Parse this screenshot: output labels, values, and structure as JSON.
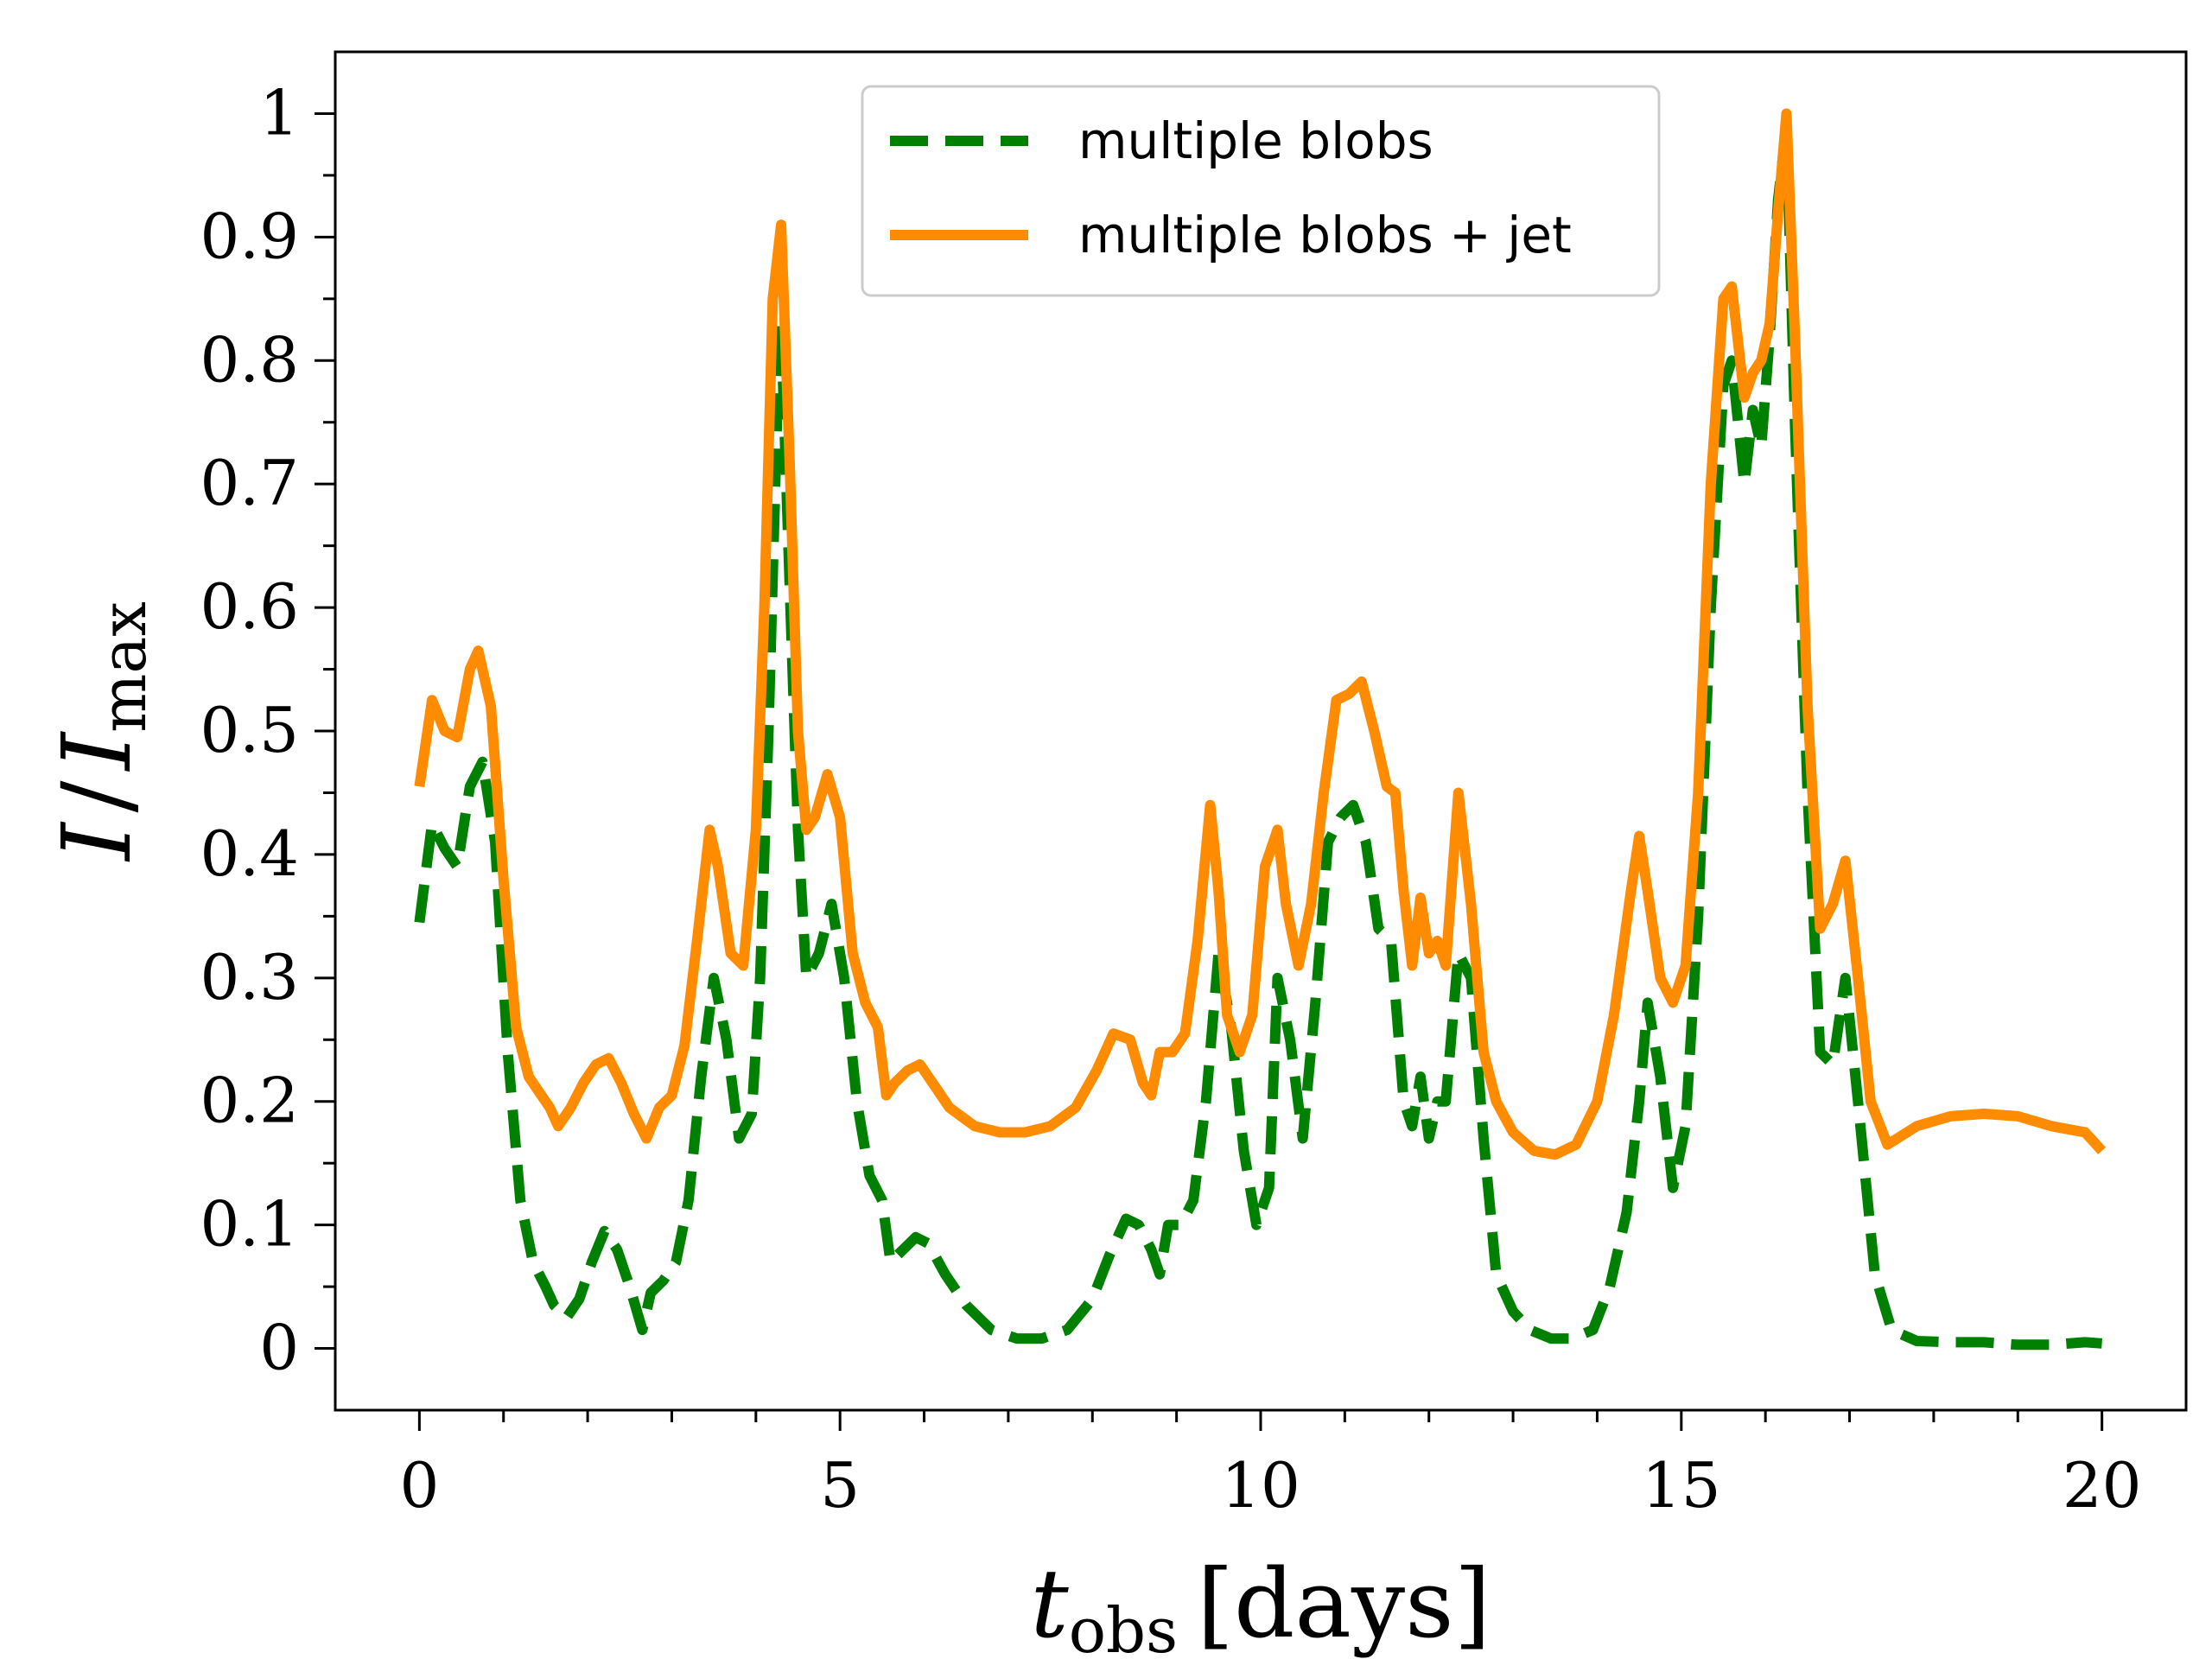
{
  "chart_data": {
    "type": "line",
    "title": "",
    "xlabel": {
      "var": "t",
      "sub": "obs",
      "unit": "[days]"
    },
    "ylabel": {
      "var": "I",
      "sep": "/",
      "var2": "I",
      "sub": "max"
    },
    "xlim": [
      -1,
      21
    ],
    "ylim": [
      -0.05,
      1.05
    ],
    "x_ticks": [
      0,
      5,
      10,
      15,
      20
    ],
    "x_tick_labels": [
      "0",
      "5",
      "10",
      "15",
      "20"
    ],
    "y_ticks": [
      0,
      0.1,
      0.2,
      0.3,
      0.4,
      0.5,
      0.6,
      0.7,
      0.8,
      0.9,
      1
    ],
    "y_tick_labels": [
      "0",
      "0.1",
      "0.2",
      "0.3",
      "0.4",
      "0.5",
      "0.6",
      "0.7",
      "0.8",
      "0.9",
      "1"
    ],
    "legend_position": "top-center",
    "series": [
      {
        "name": "multiple blobs",
        "color": "#008000",
        "style": "dashed",
        "x": [
          0,
          0.15,
          0.3,
          0.45,
          0.6,
          0.75,
          0.9,
          1.05,
          1.2,
          1.35,
          1.5,
          1.6,
          1.75,
          1.9,
          2.05,
          2.2,
          2.35,
          2.5,
          2.65,
          2.75,
          2.9,
          3.05,
          3.2,
          3.35,
          3.5,
          3.65,
          3.8,
          3.95,
          4.05,
          4.15,
          4.25,
          4.3,
          4.4,
          4.5,
          4.6,
          4.75,
          4.9,
          5.05,
          5.2,
          5.35,
          5.5,
          5.6,
          5.75,
          5.9,
          6.05,
          6.25,
          6.5,
          6.8,
          7.1,
          7.4,
          7.7,
          8.0,
          8.2,
          8.4,
          8.55,
          8.7,
          8.8,
          8.9,
          9.05,
          9.2,
          9.35,
          9.5,
          9.65,
          9.8,
          9.95,
          10.1,
          10.2,
          10.35,
          10.5,
          10.65,
          10.8,
          10.95,
          11.1,
          11.25,
          11.4,
          11.55,
          11.7,
          11.8,
          11.9,
          12.0,
          12.1,
          12.2,
          12.35,
          12.5,
          12.65,
          12.8,
          13.0,
          13.2,
          13.45,
          13.7,
          13.95,
          14.15,
          14.35,
          14.5,
          14.6,
          14.75,
          14.9,
          15.05,
          15.2,
          15.35,
          15.5,
          15.6,
          15.75,
          15.85,
          15.95,
          16.05,
          16.15,
          16.25,
          16.35,
          16.5,
          16.65,
          16.8,
          16.95,
          17.1,
          17.3,
          17.5,
          17.8,
          18.2,
          18.6,
          19.0,
          19.4,
          19.8,
          20.0
        ],
        "y": [
          0.345,
          0.425,
          0.405,
          0.39,
          0.455,
          0.475,
          0.41,
          0.24,
          0.12,
          0.07,
          0.05,
          0.035,
          0.025,
          0.04,
          0.07,
          0.095,
          0.08,
          0.05,
          0.015,
          0.045,
          0.055,
          0.07,
          0.12,
          0.22,
          0.3,
          0.25,
          0.17,
          0.19,
          0.3,
          0.5,
          0.75,
          0.83,
          0.62,
          0.42,
          0.3,
          0.32,
          0.36,
          0.3,
          0.2,
          0.14,
          0.12,
          0.07,
          0.08,
          0.09,
          0.085,
          0.06,
          0.035,
          0.015,
          0.008,
          0.008,
          0.015,
          0.04,
          0.075,
          0.105,
          0.1,
          0.08,
          0.06,
          0.1,
          0.1,
          0.12,
          0.2,
          0.32,
          0.26,
          0.16,
          0.1,
          0.13,
          0.3,
          0.25,
          0.17,
          0.28,
          0.41,
          0.43,
          0.44,
          0.41,
          0.34,
          0.33,
          0.2,
          0.18,
          0.22,
          0.17,
          0.2,
          0.2,
          0.32,
          0.3,
          0.17,
          0.06,
          0.03,
          0.015,
          0.008,
          0.008,
          0.015,
          0.05,
          0.11,
          0.2,
          0.28,
          0.22,
          0.13,
          0.18,
          0.35,
          0.6,
          0.78,
          0.8,
          0.7,
          0.76,
          0.73,
          0.82,
          0.93,
          0.99,
          0.75,
          0.45,
          0.24,
          0.23,
          0.3,
          0.2,
          0.06,
          0.015,
          0.006,
          0.005,
          0.005,
          0.003,
          0.003,
          0.005,
          0.004
        ]
      },
      {
        "name": "multiple blobs + jet",
        "color": "#ff8c00",
        "style": "solid",
        "x": [
          0,
          0.15,
          0.3,
          0.45,
          0.6,
          0.7,
          0.85,
          1.0,
          1.15,
          1.3,
          1.45,
          1.55,
          1.65,
          1.8,
          1.95,
          2.1,
          2.25,
          2.4,
          2.55,
          2.7,
          2.85,
          3.0,
          3.15,
          3.3,
          3.45,
          3.55,
          3.7,
          3.85,
          4.0,
          4.1,
          4.2,
          4.3,
          4.4,
          4.5,
          4.6,
          4.7,
          4.85,
          5.0,
          5.15,
          5.3,
          5.45,
          5.55,
          5.65,
          5.8,
          5.95,
          6.1,
          6.3,
          6.6,
          6.9,
          7.2,
          7.5,
          7.8,
          8.05,
          8.25,
          8.45,
          8.6,
          8.7,
          8.8,
          8.95,
          9.1,
          9.25,
          9.4,
          9.5,
          9.6,
          9.75,
          9.9,
          10.05,
          10.2,
          10.3,
          10.45,
          10.6,
          10.75,
          10.9,
          11.05,
          11.2,
          11.35,
          11.5,
          11.6,
          11.7,
          11.8,
          11.9,
          12.0,
          12.1,
          12.2,
          12.35,
          12.5,
          12.65,
          12.8,
          13.0,
          13.25,
          13.5,
          13.75,
          14.0,
          14.2,
          14.4,
          14.5,
          14.6,
          14.75,
          14.9,
          15.05,
          15.2,
          15.35,
          15.5,
          15.6,
          15.75,
          15.85,
          15.95,
          16.05,
          16.15,
          16.25,
          16.35,
          16.5,
          16.65,
          16.8,
          16.95,
          17.1,
          17.25,
          17.45,
          17.8,
          18.2,
          18.6,
          19.0,
          19.4,
          19.8,
          20.0
        ],
        "y": [
          0.455,
          0.525,
          0.5,
          0.495,
          0.55,
          0.565,
          0.52,
          0.38,
          0.26,
          0.22,
          0.205,
          0.195,
          0.18,
          0.195,
          0.215,
          0.23,
          0.235,
          0.215,
          0.19,
          0.17,
          0.195,
          0.205,
          0.245,
          0.33,
          0.42,
          0.39,
          0.32,
          0.31,
          0.42,
          0.6,
          0.85,
          0.91,
          0.72,
          0.5,
          0.42,
          0.43,
          0.465,
          0.43,
          0.32,
          0.28,
          0.26,
          0.205,
          0.215,
          0.225,
          0.23,
          0.215,
          0.195,
          0.18,
          0.175,
          0.175,
          0.18,
          0.195,
          0.225,
          0.255,
          0.25,
          0.215,
          0.205,
          0.24,
          0.24,
          0.255,
          0.33,
          0.44,
          0.37,
          0.27,
          0.24,
          0.27,
          0.39,
          0.42,
          0.36,
          0.31,
          0.36,
          0.45,
          0.525,
          0.53,
          0.54,
          0.5,
          0.455,
          0.45,
          0.37,
          0.31,
          0.365,
          0.32,
          0.33,
          0.31,
          0.45,
          0.36,
          0.24,
          0.2,
          0.175,
          0.16,
          0.157,
          0.165,
          0.2,
          0.27,
          0.37,
          0.415,
          0.37,
          0.3,
          0.28,
          0.31,
          0.45,
          0.7,
          0.85,
          0.86,
          0.77,
          0.79,
          0.8,
          0.83,
          0.92,
          1.0,
          0.82,
          0.52,
          0.34,
          0.36,
          0.395,
          0.3,
          0.2,
          0.165,
          0.18,
          0.188,
          0.19,
          0.188,
          0.18,
          0.175,
          0.16
        ]
      }
    ]
  }
}
